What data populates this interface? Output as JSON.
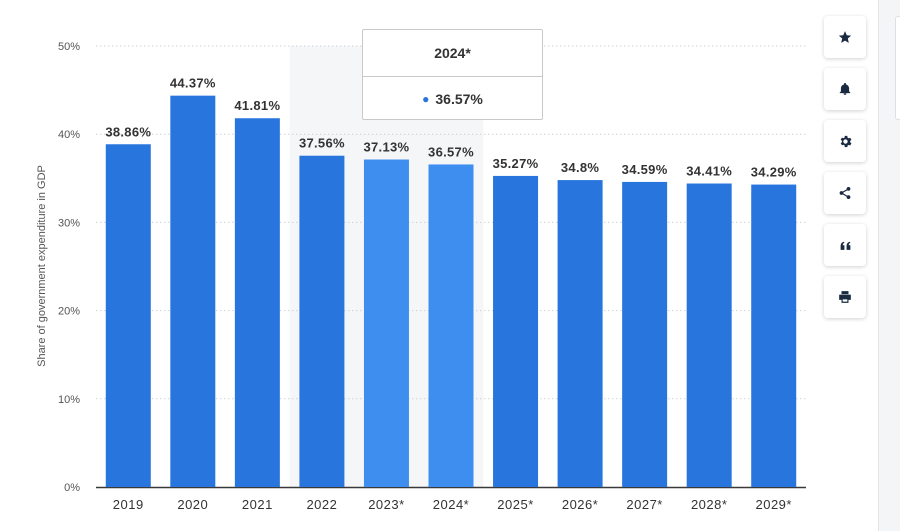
{
  "chart_data": {
    "type": "bar",
    "ylabel": "Share of government expenditure in GDP",
    "categories": [
      "2019",
      "2020",
      "2021",
      "2022",
      "2023*",
      "2024*",
      "2025*",
      "2026*",
      "2027*",
      "2028*",
      "2029*"
    ],
    "values": [
      38.86,
      44.37,
      41.81,
      37.56,
      37.13,
      36.57,
      35.27,
      34.8,
      34.59,
      34.41,
      34.29
    ],
    "data_labels": [
      "38.86%",
      "44.37%",
      "41.81%",
      "37.56%",
      "37.13%",
      "36.57%",
      "35.27%",
      "34.8%",
      "34.59%",
      "34.41%",
      "34.29%"
    ],
    "ylim": [
      0,
      50
    ],
    "y_ticks": [
      "0%",
      "10%",
      "20%",
      "30%",
      "40%",
      "50%"
    ],
    "grid": true,
    "bar_color": "#2876dd",
    "highlight_color": "#3e8ef0",
    "highlighted_categories": [
      "2023*",
      "2024*"
    ],
    "hover_band_color": "#f5f6f8",
    "hover_band_category": "2022",
    "tooltip": {
      "title": "2024*",
      "value": "36.57%"
    }
  },
  "toolbar": {
    "buttons": [
      {
        "icon": "star-icon",
        "name": "favorite-button"
      },
      {
        "icon": "bell-icon",
        "name": "notification-button"
      },
      {
        "icon": "gear-icon",
        "name": "settings-button"
      },
      {
        "icon": "share-icon",
        "name": "share-button"
      },
      {
        "icon": "quote-icon",
        "name": "cite-button"
      },
      {
        "icon": "print-icon",
        "name": "print-button"
      }
    ]
  }
}
